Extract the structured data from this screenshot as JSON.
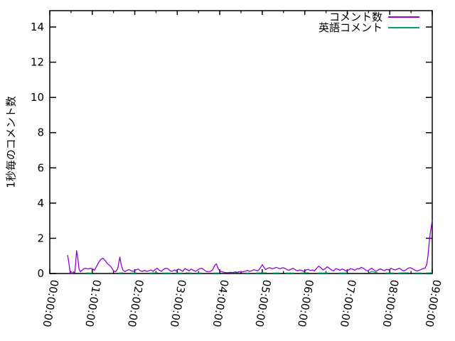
{
  "legend": {
    "entries": [
      {
        "label": "コメント数",
        "color": "#9400d3"
      },
      {
        "label": "英語コメント",
        "color": "#009e73"
      }
    ]
  },
  "chart_data": {
    "type": "line",
    "title": "",
    "xlabel": "",
    "ylabel": "1秒毎のコメント数",
    "x_unit": "time (hh:mm:ss)",
    "xlim_hours": [
      0,
      9
    ],
    "ylim": [
      0,
      15
    ],
    "grid": false,
    "legend_position": "top-right",
    "background": "#ffffff",
    "axis_color": "#000000",
    "ytick_values": [
      0,
      2,
      4,
      6,
      8,
      10,
      12,
      14
    ],
    "xticks": [
      {
        "hour": 0,
        "label": "00:00:00"
      },
      {
        "hour": 1,
        "label": "01:00:00"
      },
      {
        "hour": 2,
        "label": "02:00:00"
      },
      {
        "hour": 3,
        "label": "03:00:00"
      },
      {
        "hour": 4,
        "label": "04:00:00"
      },
      {
        "hour": 5,
        "label": "05:00:00"
      },
      {
        "hour": 6,
        "label": "06:00:00"
      },
      {
        "hour": 7,
        "label": "07:00:00"
      },
      {
        "hour": 8,
        "label": "08:00:00"
      },
      {
        "hour": 9,
        "label": "09:00:00"
      }
    ],
    "xtick_minor_interval_hours": 0.5,
    "series": [
      {
        "name": "コメント数",
        "color": "#9400d3",
        "points": [
          [
            0.42,
            1.05
          ],
          [
            0.45,
            0.6
          ],
          [
            0.48,
            0.05
          ],
          [
            0.52,
            0.0
          ],
          [
            0.56,
            0.1
          ],
          [
            0.59,
            0.04
          ],
          [
            0.63,
            1.3
          ],
          [
            0.66,
            0.85
          ],
          [
            0.69,
            0.25
          ],
          [
            0.72,
            0.1
          ],
          [
            0.76,
            0.18
          ],
          [
            0.8,
            0.27
          ],
          [
            0.85,
            0.3
          ],
          [
            0.9,
            0.26
          ],
          [
            0.95,
            0.3
          ],
          [
            1.0,
            0.27
          ],
          [
            1.05,
            0.18
          ],
          [
            1.1,
            0.4
          ],
          [
            1.15,
            0.62
          ],
          [
            1.2,
            0.8
          ],
          [
            1.25,
            0.87
          ],
          [
            1.3,
            0.75
          ],
          [
            1.35,
            0.58
          ],
          [
            1.4,
            0.48
          ],
          [
            1.45,
            0.35
          ],
          [
            1.5,
            0.15
          ],
          [
            1.55,
            0.1
          ],
          [
            1.6,
            0.28
          ],
          [
            1.65,
            0.93
          ],
          [
            1.68,
            0.5
          ],
          [
            1.72,
            0.2
          ],
          [
            1.77,
            0.1
          ],
          [
            1.82,
            0.18
          ],
          [
            1.87,
            0.22
          ],
          [
            1.92,
            0.15
          ],
          [
            1.97,
            0.12
          ],
          [
            2.02,
            0.2
          ],
          [
            2.08,
            0.25
          ],
          [
            2.13,
            0.15
          ],
          [
            2.18,
            0.12
          ],
          [
            2.23,
            0.18
          ],
          [
            2.28,
            0.12
          ],
          [
            2.33,
            0.15
          ],
          [
            2.38,
            0.2
          ],
          [
            2.43,
            0.12
          ],
          [
            2.48,
            0.22
          ],
          [
            2.53,
            0.3
          ],
          [
            2.58,
            0.18
          ],
          [
            2.63,
            0.12
          ],
          [
            2.68,
            0.25
          ],
          [
            2.73,
            0.3
          ],
          [
            2.78,
            0.28
          ],
          [
            2.83,
            0.15
          ],
          [
            2.88,
            0.12
          ],
          [
            2.93,
            0.2
          ],
          [
            2.98,
            0.15
          ],
          [
            3.03,
            0.25
          ],
          [
            3.08,
            0.2
          ],
          [
            3.13,
            0.12
          ],
          [
            3.18,
            0.28
          ],
          [
            3.23,
            0.22
          ],
          [
            3.28,
            0.15
          ],
          [
            3.33,
            0.25
          ],
          [
            3.38,
            0.18
          ],
          [
            3.43,
            0.12
          ],
          [
            3.48,
            0.2
          ],
          [
            3.53,
            0.28
          ],
          [
            3.58,
            0.3
          ],
          [
            3.63,
            0.2
          ],
          [
            3.68,
            0.12
          ],
          [
            3.73,
            0.1
          ],
          [
            3.78,
            0.12
          ],
          [
            3.83,
            0.2
          ],
          [
            3.88,
            0.45
          ],
          [
            3.92,
            0.55
          ],
          [
            3.96,
            0.3
          ],
          [
            4.0,
            0.15
          ],
          [
            4.05,
            0.1
          ],
          [
            4.1,
            0.07
          ],
          [
            4.15,
            0.05
          ],
          [
            4.2,
            0.05
          ],
          [
            4.25,
            0.07
          ],
          [
            4.3,
            0.05
          ],
          [
            4.35,
            0.08
          ],
          [
            4.4,
            0.05
          ],
          [
            4.45,
            0.1
          ],
          [
            4.5,
            0.07
          ],
          [
            4.55,
            0.1
          ],
          [
            4.6,
            0.13
          ],
          [
            4.65,
            0.18
          ],
          [
            4.7,
            0.12
          ],
          [
            4.75,
            0.15
          ],
          [
            4.8,
            0.22
          ],
          [
            4.85,
            0.18
          ],
          [
            4.9,
            0.15
          ],
          [
            4.95,
            0.3
          ],
          [
            5.0,
            0.5
          ],
          [
            5.04,
            0.35
          ],
          [
            5.08,
            0.22
          ],
          [
            5.13,
            0.3
          ],
          [
            5.18,
            0.33
          ],
          [
            5.23,
            0.27
          ],
          [
            5.28,
            0.3
          ],
          [
            5.33,
            0.35
          ],
          [
            5.38,
            0.3
          ],
          [
            5.43,
            0.28
          ],
          [
            5.48,
            0.33
          ],
          [
            5.53,
            0.3
          ],
          [
            5.58,
            0.22
          ],
          [
            5.63,
            0.18
          ],
          [
            5.68,
            0.25
          ],
          [
            5.73,
            0.3
          ],
          [
            5.78,
            0.2
          ],
          [
            5.83,
            0.15
          ],
          [
            5.88,
            0.2
          ],
          [
            5.93,
            0.17
          ],
          [
            5.98,
            0.12
          ],
          [
            6.03,
            0.2
          ],
          [
            6.08,
            0.24
          ],
          [
            6.13,
            0.17
          ],
          [
            6.18,
            0.2
          ],
          [
            6.23,
            0.15
          ],
          [
            6.28,
            0.3
          ],
          [
            6.33,
            0.42
          ],
          [
            6.38,
            0.32
          ],
          [
            6.43,
            0.2
          ],
          [
            6.48,
            0.28
          ],
          [
            6.53,
            0.38
          ],
          [
            6.58,
            0.3
          ],
          [
            6.63,
            0.2
          ],
          [
            6.68,
            0.15
          ],
          [
            6.73,
            0.28
          ],
          [
            6.78,
            0.24
          ],
          [
            6.83,
            0.18
          ],
          [
            6.88,
            0.26
          ],
          [
            6.93,
            0.2
          ],
          [
            6.98,
            0.14
          ],
          [
            7.03,
            0.2
          ],
          [
            7.08,
            0.28
          ],
          [
            7.13,
            0.24
          ],
          [
            7.18,
            0.18
          ],
          [
            7.23,
            0.28
          ],
          [
            7.28,
            0.26
          ],
          [
            7.33,
            0.35
          ],
          [
            7.38,
            0.3
          ],
          [
            7.43,
            0.2
          ],
          [
            7.48,
            0.14
          ],
          [
            7.53,
            0.24
          ],
          [
            7.58,
            0.3
          ],
          [
            7.63,
            0.2
          ],
          [
            7.68,
            0.12
          ],
          [
            7.73,
            0.2
          ],
          [
            7.78,
            0.26
          ],
          [
            7.83,
            0.2
          ],
          [
            7.88,
            0.16
          ],
          [
            7.93,
            0.24
          ],
          [
            7.98,
            0.2
          ],
          [
            8.03,
            0.3
          ],
          [
            8.08,
            0.24
          ],
          [
            8.13,
            0.2
          ],
          [
            8.18,
            0.26
          ],
          [
            8.23,
            0.3
          ],
          [
            8.28,
            0.2
          ],
          [
            8.33,
            0.15
          ],
          [
            8.38,
            0.2
          ],
          [
            8.43,
            0.3
          ],
          [
            8.48,
            0.33
          ],
          [
            8.53,
            0.28
          ],
          [
            8.58,
            0.2
          ],
          [
            8.63,
            0.15
          ],
          [
            8.68,
            0.17
          ],
          [
            8.73,
            0.22
          ],
          [
            8.78,
            0.28
          ],
          [
            8.83,
            0.3
          ],
          [
            8.87,
            0.5
          ],
          [
            8.9,
            1.0
          ],
          [
            8.93,
            1.8
          ],
          [
            8.96,
            2.4
          ],
          [
            8.98,
            2.7
          ],
          [
            9.0,
            3.05
          ]
        ]
      },
      {
        "name": "英語コメント",
        "color": "#009e73",
        "segments": [
          [
            [
              0.85,
              0.03
            ],
            [
              1.0,
              0.03
            ]
          ],
          [
            [
              1.62,
              0.03
            ],
            [
              1.73,
              0.04
            ]
          ],
          [
            [
              1.9,
              0.03
            ],
            [
              2.05,
              0.03
            ]
          ],
          [
            [
              2.35,
              0.03
            ],
            [
              2.55,
              0.04
            ]
          ],
          [
            [
              2.65,
              0.03
            ],
            [
              2.85,
              0.03
            ]
          ],
          [
            [
              2.97,
              0.03
            ],
            [
              3.12,
              0.03
            ]
          ],
          [
            [
              3.2,
              0.04
            ],
            [
              3.35,
              0.03
            ]
          ],
          [
            [
              3.45,
              0.03
            ],
            [
              3.58,
              0.03
            ]
          ],
          [
            [
              3.85,
              0.03
            ],
            [
              4.0,
              0.03
            ]
          ],
          [
            [
              4.3,
              0.03
            ],
            [
              4.38,
              0.1
            ],
            [
              4.45,
              0.03
            ]
          ],
          [
            [
              4.6,
              0.03
            ],
            [
              4.7,
              0.03
            ]
          ],
          [
            [
              4.85,
              0.03
            ],
            [
              5.1,
              0.04
            ]
          ],
          [
            [
              5.25,
              0.03
            ],
            [
              5.4,
              0.03
            ]
          ],
          [
            [
              5.55,
              0.03
            ],
            [
              5.75,
              0.03
            ]
          ],
          [
            [
              5.9,
              0.03
            ],
            [
              6.1,
              0.04
            ]
          ],
          [
            [
              6.3,
              0.03
            ],
            [
              6.55,
              0.03
            ]
          ],
          [
            [
              6.8,
              0.03
            ],
            [
              7.0,
              0.03
            ]
          ],
          [
            [
              7.5,
              0.03
            ],
            [
              7.58,
              0.12
            ],
            [
              7.72,
              0.03
            ]
          ],
          [
            [
              7.9,
              0.03
            ],
            [
              8.1,
              0.03
            ]
          ],
          [
            [
              8.2,
              0.03
            ],
            [
              8.45,
              0.04
            ]
          ],
          [
            [
              8.6,
              0.03
            ],
            [
              8.75,
              0.03
            ]
          ],
          [
            [
              8.85,
              0.03
            ],
            [
              9.0,
              0.04
            ]
          ]
        ]
      }
    ]
  }
}
